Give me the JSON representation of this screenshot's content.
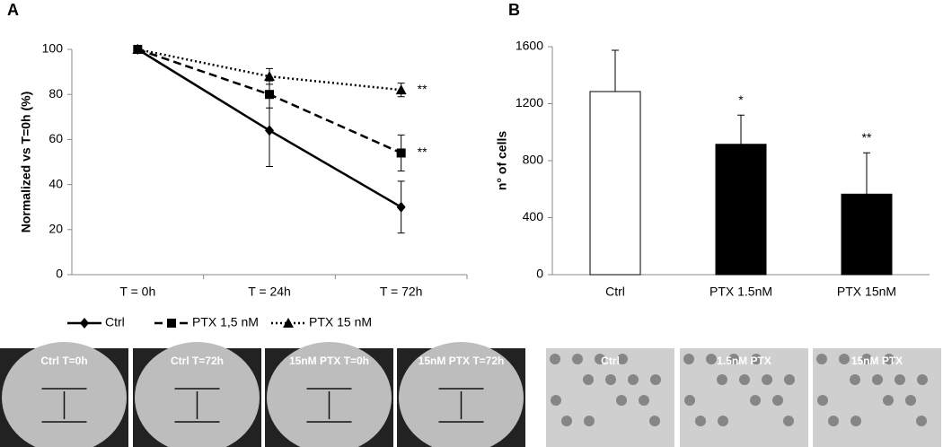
{
  "panel_labels": [
    "A",
    "B"
  ],
  "chart_data": [
    {
      "type": "line",
      "y_label": "Normalized vs T=0h (%)",
      "categories": [
        "T = 0h",
        "T = 24h",
        "T = 72h"
      ],
      "ylim": [
        0,
        100
      ],
      "yticks": [
        0,
        20,
        40,
        60,
        80,
        100
      ],
      "series": [
        {
          "name": "Ctrl",
          "color": "#000000",
          "line_style": "solid",
          "marker": "diamond",
          "values": [
            100,
            64,
            30
          ],
          "errors": [
            0,
            16,
            11.5
          ],
          "annotations": [
            null,
            null,
            null
          ]
        },
        {
          "name": "PTX 1,5 nM",
          "color": "#000000",
          "line_style": "dashed",
          "marker": "square",
          "values": [
            100,
            80,
            54
          ],
          "errors": [
            0,
            6,
            8
          ],
          "annotations": [
            null,
            null,
            "**"
          ]
        },
        {
          "name": "PTX 15 nM",
          "color": "#000000",
          "line_style": "dotted",
          "marker": "triangle",
          "values": [
            100,
            88,
            82
          ],
          "errors": [
            0,
            3.5,
            3
          ],
          "annotations": [
            null,
            null,
            "**"
          ]
        }
      ]
    },
    {
      "type": "bar",
      "y_label": "n° of cells",
      "categories": [
        "Ctrl",
        "PTX 1.5nM",
        "PTX 15nM"
      ],
      "ylim": [
        0,
        1600
      ],
      "yticks": [
        0,
        400,
        800,
        1200,
        1600
      ],
      "values": [
        1285,
        915,
        565
      ],
      "errors": [
        290,
        205,
        290
      ],
      "colors": [
        "#ffffff",
        "#000000",
        "#000000"
      ],
      "annotations": [
        null,
        "*",
        "**"
      ]
    }
  ],
  "images_a": [
    "Ctrl T=0h",
    "Ctrl T=72h",
    "15nM PTX T=0h",
    "15nM PTX T=72h"
  ],
  "images_b": [
    "Ctrl",
    "1.5nM PTX",
    "15nM PTX"
  ]
}
